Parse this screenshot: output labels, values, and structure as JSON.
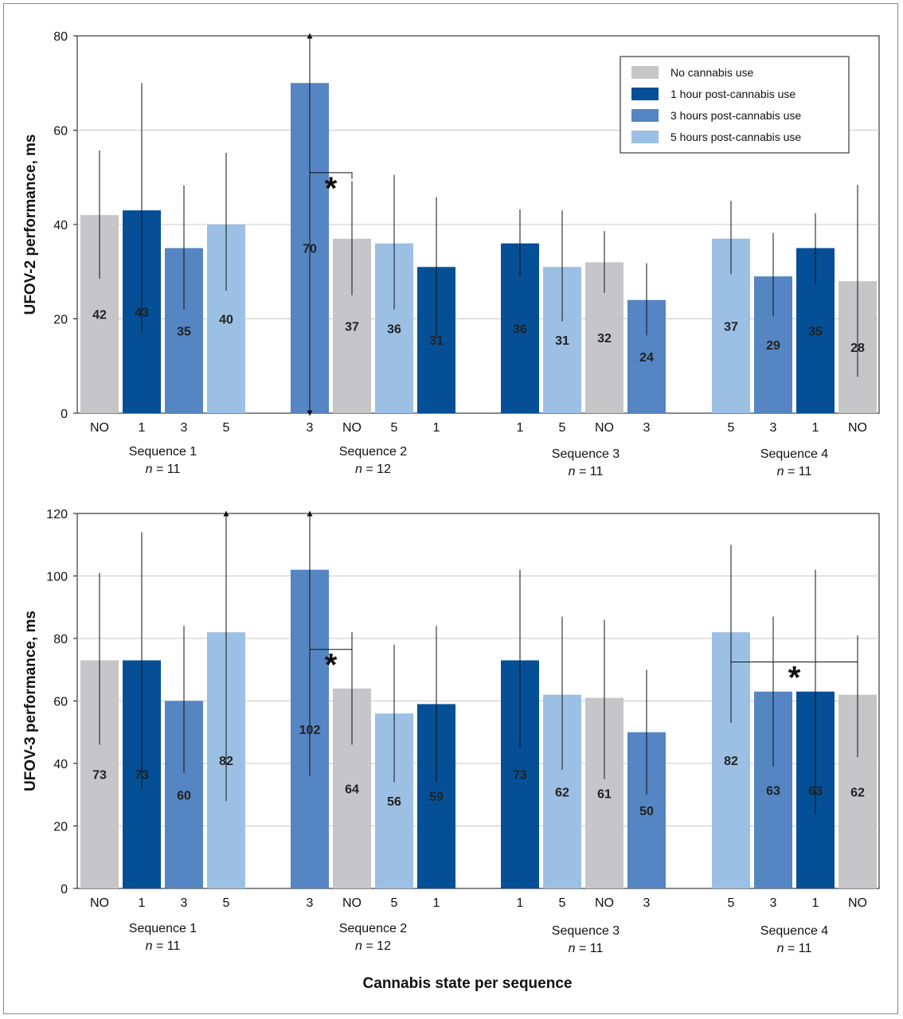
{
  "colors": {
    "NO": "#c6c6c8",
    "1": "#054f96",
    "3": "#5585c2",
    "5": "#9bc0e4"
  },
  "legend": [
    {
      "key": "NO",
      "label": "No cannabis use"
    },
    {
      "key": "1",
      "label": "1 hour post-cannabis use"
    },
    {
      "key": "3",
      "label": "3 hours post-cannabis use"
    },
    {
      "key": "5",
      "label": "5 hours post-cannabis use"
    }
  ],
  "xlabel": "Cannabis state per sequence",
  "sequences": [
    {
      "name": "Sequence 1",
      "n_prefix": "n",
      "n_value": " = 11"
    },
    {
      "name": "Sequence 2",
      "n_prefix": "n",
      "n_value": " = 12"
    },
    {
      "name": "Sequence 3",
      "n_prefix": "n",
      "n_value": " = 11"
    },
    {
      "name": "Sequence 4",
      "n_prefix": "n",
      "n_value": " = 11"
    }
  ],
  "chart_data": [
    {
      "type": "bar",
      "ylabel": "UFOV-2 performance, ms",
      "ylim": [
        0,
        80
      ],
      "yticks": [
        0,
        20,
        40,
        60,
        80
      ],
      "grid": true,
      "legend_position": "top-right",
      "groups": [
        {
          "sequence": "Sequence 1",
          "bars": [
            {
              "cat": "NO",
              "value": 42,
              "label": "42",
              "err": [
                28.5,
                55.7
              ]
            },
            {
              "cat": "1",
              "value": 43,
              "label": "43",
              "err": [
                17,
                70
              ]
            },
            {
              "cat": "3",
              "value": 35,
              "label": "35",
              "err": [
                22,
                48.3
              ]
            },
            {
              "cat": "5",
              "value": 40,
              "label": "40",
              "err": [
                26,
                55.2
              ]
            }
          ]
        },
        {
          "sequence": "Sequence 2",
          "bars": [
            {
              "cat": "3",
              "value": 70,
              "label": "70",
              "err": [
                0,
                80
              ],
              "arrows": true
            },
            {
              "cat": "NO",
              "value": 37,
              "label": "37",
              "err": [
                25,
                49.2
              ]
            },
            {
              "cat": "5",
              "value": 36,
              "label": "36",
              "err": [
                22,
                50.5
              ]
            },
            {
              "cat": "1",
              "value": 31,
              "label": "31",
              "err": [
                16,
                45.8
              ]
            }
          ]
        },
        {
          "sequence": "Sequence 3",
          "bars": [
            {
              "cat": "1",
              "value": 36,
              "label": "36",
              "err": [
                29,
                43.2
              ]
            },
            {
              "cat": "5",
              "value": 31,
              "label": "31",
              "err": [
                19.5,
                43
              ]
            },
            {
              "cat": "NO",
              "value": 32,
              "label": "32",
              "err": [
                25.5,
                38.6
              ]
            },
            {
              "cat": "3",
              "value": 24,
              "label": "24",
              "err": [
                16.5,
                31.8
              ]
            }
          ]
        },
        {
          "sequence": "Sequence 4",
          "bars": [
            {
              "cat": "5",
              "value": 37,
              "label": "37",
              "err": [
                29.5,
                45
              ]
            },
            {
              "cat": "3",
              "value": 29,
              "label": "29",
              "err": [
                20.5,
                38.2
              ]
            },
            {
              "cat": "1",
              "value": 35,
              "label": "35",
              "err": [
                27.5,
                42.4
              ]
            },
            {
              "cat": "NO",
              "value": 28,
              "label": "28",
              "err": [
                7.7,
                48.4
              ]
            }
          ]
        }
      ],
      "significance": [
        {
          "from_group": 1,
          "from_bar": 0,
          "to_group": 1,
          "to_bar": 1,
          "y": 51,
          "label": "*"
        }
      ]
    },
    {
      "type": "bar",
      "ylabel": "UFOV-3 performance, ms",
      "ylim": [
        0,
        120
      ],
      "yticks": [
        0,
        20,
        40,
        60,
        80,
        100,
        120
      ],
      "grid": true,
      "groups": [
        {
          "sequence": "Sequence 1",
          "bars": [
            {
              "cat": "NO",
              "value": 73,
              "label": "73",
              "err": [
                46,
                101
              ]
            },
            {
              "cat": "1",
              "value": 73,
              "label": "73",
              "err": [
                32,
                114
              ]
            },
            {
              "cat": "3",
              "value": 60,
              "label": "60",
              "err": [
                37,
                84
              ]
            },
            {
              "cat": "5",
              "value": 82,
              "label": "82",
              "err": [
                28,
                120
              ],
              "arrow_top": true
            }
          ]
        },
        {
          "sequence": "Sequence 2",
          "bars": [
            {
              "cat": "3",
              "value": 102,
              "label": "102",
              "err": [
                36,
                120
              ],
              "arrow_top": true
            },
            {
              "cat": "NO",
              "value": 64,
              "label": "64",
              "err": [
                46,
                82
              ]
            },
            {
              "cat": "5",
              "value": 56,
              "label": "56",
              "err": [
                34,
                78
              ]
            },
            {
              "cat": "1",
              "value": 59,
              "label": "59",
              "err": [
                34,
                84
              ]
            }
          ]
        },
        {
          "sequence": "Sequence 3",
          "bars": [
            {
              "cat": "1",
              "value": 73,
              "label": "73",
              "err": [
                45,
                102
              ]
            },
            {
              "cat": "5",
              "value": 62,
              "label": "62",
              "err": [
                38,
                87
              ]
            },
            {
              "cat": "NO",
              "value": 61,
              "label": "61",
              "err": [
                35,
                86
              ]
            },
            {
              "cat": "3",
              "value": 50,
              "label": "50",
              "err": [
                30,
                70
              ]
            }
          ]
        },
        {
          "sequence": "Sequence 4",
          "bars": [
            {
              "cat": "5",
              "value": 82,
              "label": "82",
              "err": [
                53,
                110
              ]
            },
            {
              "cat": "3",
              "value": 63,
              "label": "63",
              "err": [
                39,
                87
              ]
            },
            {
              "cat": "1",
              "value": 63,
              "label": "63",
              "err": [
                24,
                102
              ]
            },
            {
              "cat": "NO",
              "value": 62,
              "label": "62",
              "err": [
                42,
                81
              ]
            }
          ]
        }
      ],
      "significance": [
        {
          "from_group": 1,
          "from_bar": 0,
          "to_group": 1,
          "to_bar": 1,
          "y": 76.5,
          "label": "*"
        },
        {
          "from_group": 3,
          "from_bar": 0,
          "to_group": 3,
          "to_bar": 3,
          "y": 72.5,
          "label": "*"
        }
      ]
    }
  ]
}
